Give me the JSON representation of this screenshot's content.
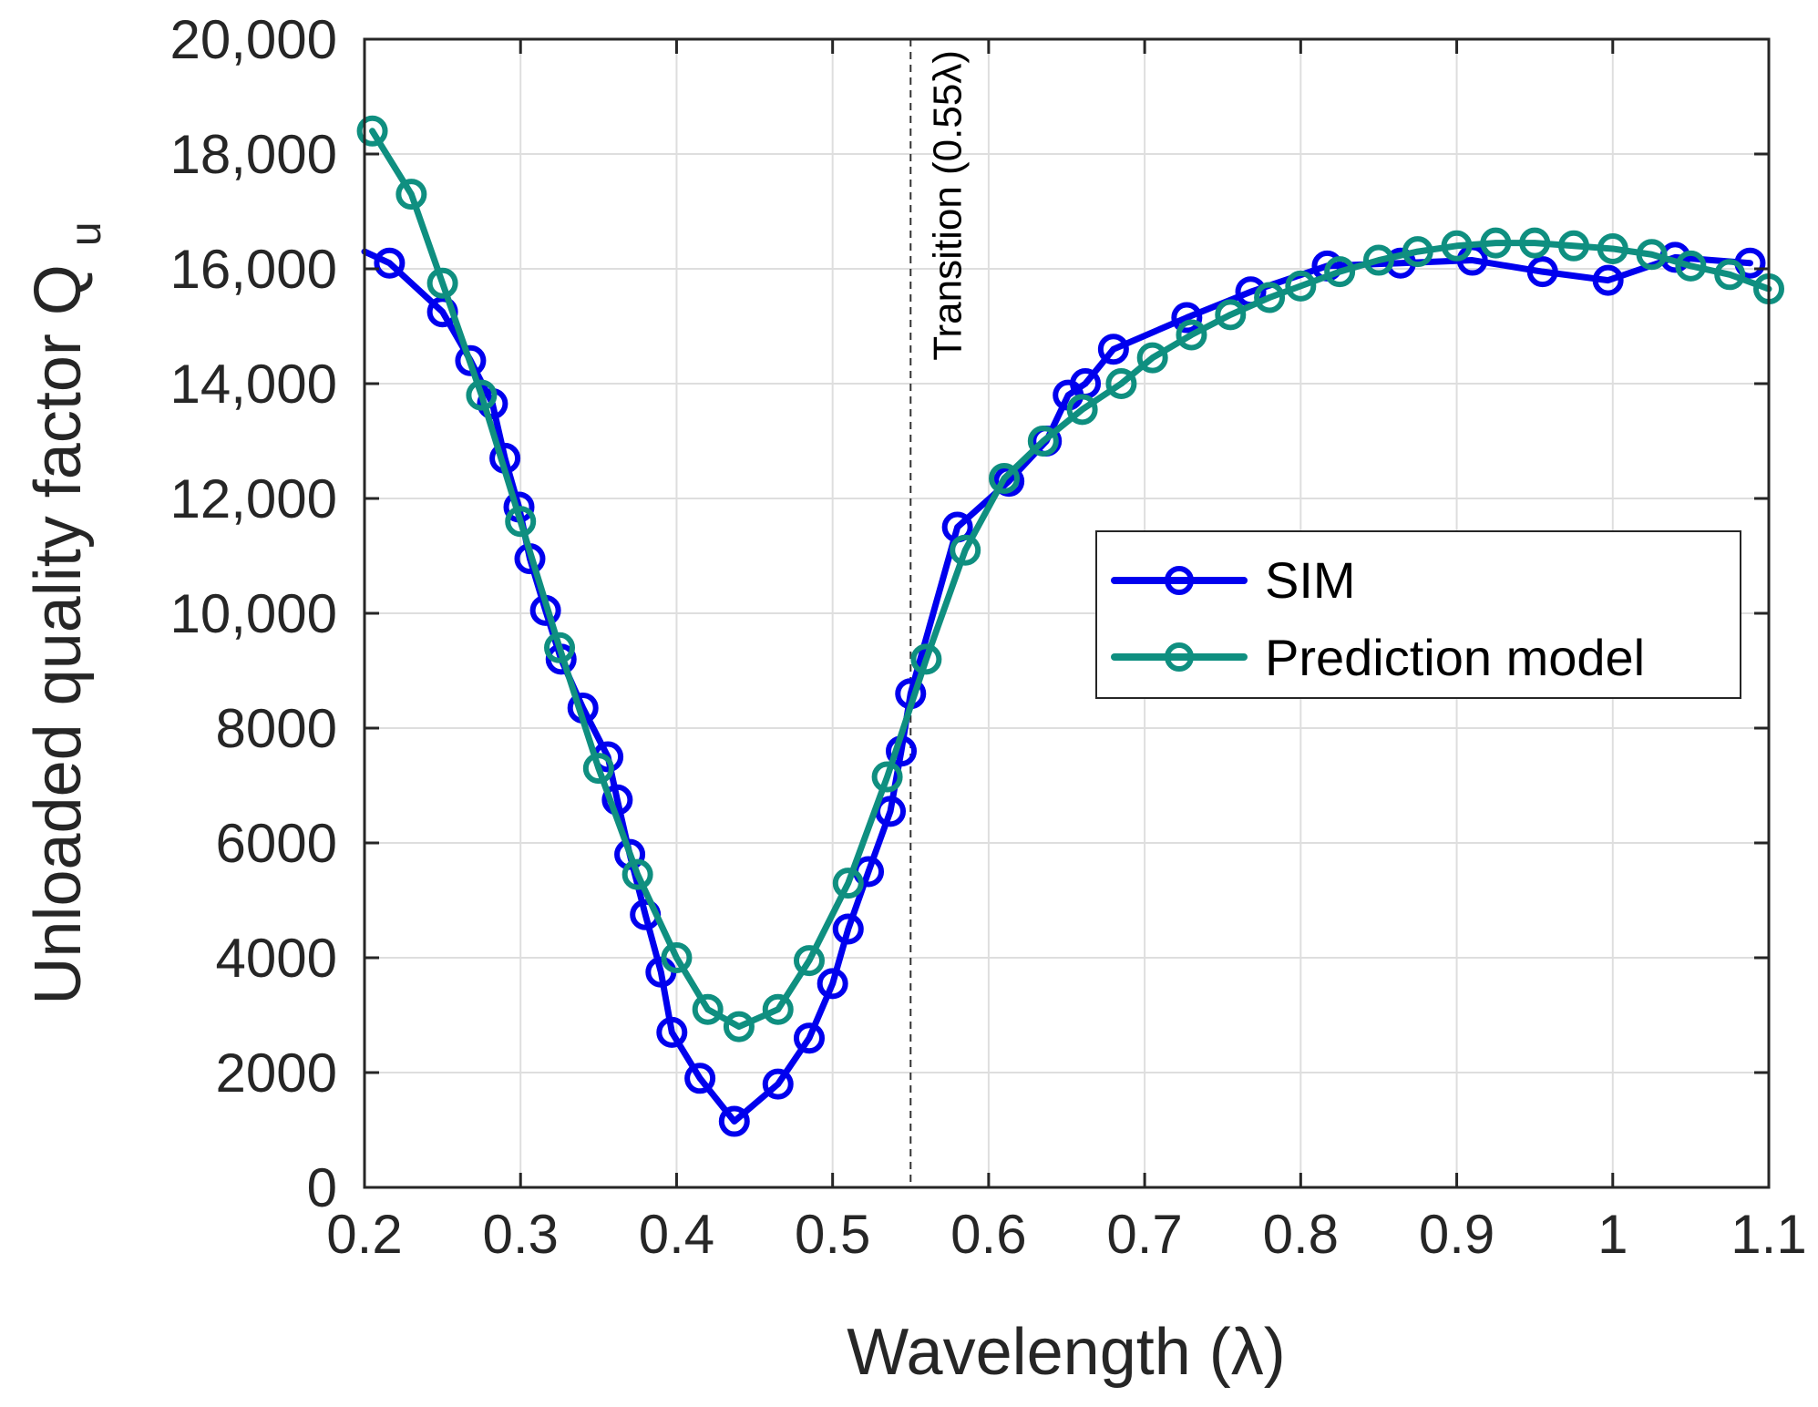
{
  "chart_data": {
    "type": "line",
    "title": "",
    "xlabel": "Wavelength (λ)",
    "ylabel": "Unloaded quality factor Q",
    "ylabel_subscript": "u",
    "xlim": [
      0.2,
      1.1
    ],
    "ylim": [
      0,
      20000
    ],
    "grid": true,
    "legend_position": "right",
    "x_ticks": [
      0.2,
      0.3,
      0.4,
      0.5,
      0.6,
      0.7,
      0.8,
      0.9,
      1.0,
      1.1
    ],
    "x_tick_labels": [
      "0.2",
      "0.3",
      "0.4",
      "0.5",
      "0.6",
      "0.7",
      "0.8",
      "0.9",
      "1",
      "1.1"
    ],
    "y_ticks": [
      0,
      2000,
      4000,
      6000,
      8000,
      10000,
      12000,
      14000,
      16000,
      18000,
      20000
    ],
    "y_tick_labels": [
      "0",
      "2000",
      "4000",
      "6000",
      "8000",
      "10,000",
      "12,000",
      "14,000",
      "16,000",
      "18,000",
      "20,000"
    ],
    "annotation": {
      "text": "Transition (0.55λ)",
      "x": 0.55
    },
    "series": [
      {
        "name": "SIM",
        "color": "#0000ee",
        "line_start": [
          0.2,
          16300
        ],
        "x": [
          0.216,
          0.25,
          0.268,
          0.282,
          0.29,
          0.299,
          0.306,
          0.316,
          0.326,
          0.34,
          0.356,
          0.362,
          0.37,
          0.38,
          0.39,
          0.397,
          0.415,
          0.437,
          0.465,
          0.485,
          0.5,
          0.51,
          0.523,
          0.537,
          0.544,
          0.55,
          0.58,
          0.613,
          0.637,
          0.651,
          0.662,
          0.68,
          0.727,
          0.768,
          0.817,
          0.864,
          0.91,
          0.955,
          0.997,
          1.04,
          1.088
        ],
        "y": [
          16100,
          15250,
          14400,
          13650,
          12700,
          11850,
          10950,
          10050,
          9200,
          8350,
          7500,
          6750,
          5800,
          4750,
          3750,
          2700,
          1900,
          1150,
          1800,
          2600,
          3550,
          4500,
          5500,
          6550,
          7600,
          8600,
          11500,
          12300,
          13000,
          13800,
          14000,
          14600,
          15150,
          15600,
          16050,
          16100,
          16150,
          15950,
          15800,
          16200,
          16100
        ]
      },
      {
        "name": "Prediction model",
        "color": "#0f8f80",
        "x": [
          0.205,
          0.23,
          0.25,
          0.275,
          0.3,
          0.325,
          0.35,
          0.375,
          0.4,
          0.42,
          0.44,
          0.465,
          0.485,
          0.51,
          0.535,
          0.56,
          0.585,
          0.61,
          0.635,
          0.66,
          0.685,
          0.705,
          0.73,
          0.755,
          0.78,
          0.8,
          0.825,
          0.85,
          0.875,
          0.9,
          0.925,
          0.95,
          0.975,
          1.0,
          1.025,
          1.05,
          1.075,
          1.1
        ],
        "y": [
          18400,
          17300,
          15750,
          13800,
          11600,
          9400,
          7300,
          5450,
          4000,
          3100,
          2800,
          3100,
          3950,
          5300,
          7150,
          9200,
          11100,
          12350,
          13000,
          13550,
          14000,
          14450,
          14850,
          15200,
          15500,
          15700,
          15950,
          16150,
          16300,
          16400,
          16450,
          16450,
          16400,
          16350,
          16250,
          16050,
          15900,
          15650
        ]
      }
    ]
  }
}
